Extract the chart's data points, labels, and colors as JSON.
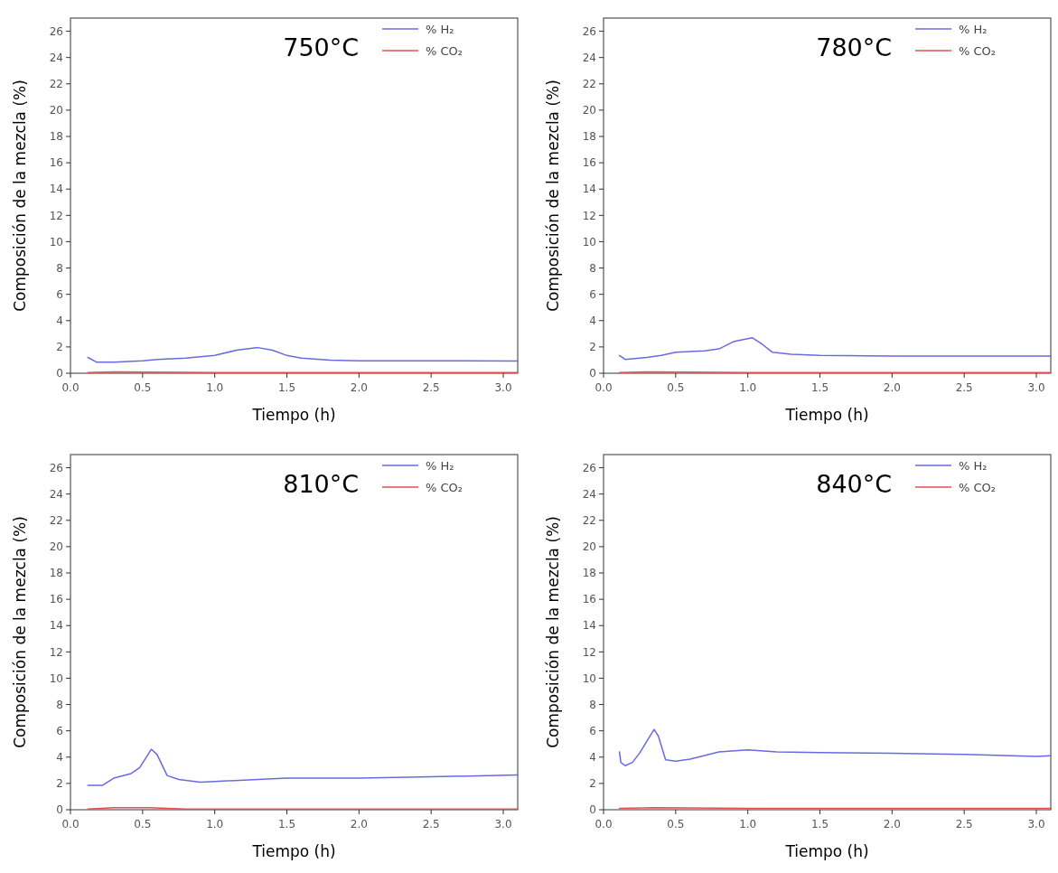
{
  "chart_data": [
    {
      "type": "line",
      "title": "750°C",
      "xlabel": "Tiempo (h)",
      "ylabel": "Composición de la mezcla (%)",
      "xlim": [
        0,
        3.1
      ],
      "ylim": [
        0,
        27
      ],
      "xticks": [
        {
          "value": 0,
          "label": "0.0"
        },
        {
          "value": 0.5,
          "label": "0.5"
        },
        {
          "value": 1,
          "label": "1.0"
        },
        {
          "value": 1.5,
          "label": "1.5"
        },
        {
          "value": 2,
          "label": "2.0"
        },
        {
          "value": 2.5,
          "label": "2.5"
        },
        {
          "value": 3,
          "label": "3.0"
        }
      ],
      "yticks": [
        0,
        2,
        4,
        6,
        8,
        10,
        12,
        14,
        16,
        18,
        20,
        22,
        24,
        26
      ],
      "legend": "top right",
      "series": [
        {
          "name": "% H₂",
          "color": "#6a6ae0",
          "x": [
            0.12,
            0.18,
            0.3,
            0.5,
            0.6,
            0.8,
            1.0,
            1.15,
            1.3,
            1.4,
            1.5,
            1.6,
            1.8,
            2.0,
            2.5,
            3.1
          ],
          "values": [
            1.2,
            0.85,
            0.85,
            0.95,
            1.05,
            1.15,
            1.35,
            1.75,
            1.95,
            1.75,
            1.35,
            1.15,
            1.0,
            0.95,
            0.95,
            0.92
          ]
        },
        {
          "name": "% CO₂",
          "color": "#e05050",
          "x": [
            0.12,
            0.3,
            1.0,
            2.0,
            3.1
          ],
          "values": [
            0.05,
            0.1,
            0.05,
            0.05,
            0.05
          ]
        }
      ]
    },
    {
      "type": "line",
      "title": "780°C",
      "xlabel": "Tiempo (h)",
      "ylabel": "Composición de la mezcla (%)",
      "xlim": [
        0,
        3.1
      ],
      "ylim": [
        0,
        27
      ],
      "xticks": [
        {
          "value": 0,
          "label": "0.0"
        },
        {
          "value": 0.5,
          "label": "0.5"
        },
        {
          "value": 1,
          "label": "1.0"
        },
        {
          "value": 1.5,
          "label": "1.5"
        },
        {
          "value": 2,
          "label": "2.0"
        },
        {
          "value": 2.5,
          "label": "2.5"
        },
        {
          "value": 3,
          "label": "3.0"
        }
      ],
      "yticks": [
        0,
        2,
        4,
        6,
        8,
        10,
        12,
        14,
        16,
        18,
        20,
        22,
        24,
        26
      ],
      "legend": "top right",
      "series": [
        {
          "name": "% H₂",
          "color": "#6a6ae0",
          "x": [
            0.11,
            0.15,
            0.3,
            0.4,
            0.5,
            0.7,
            0.8,
            0.9,
            1.03,
            1.1,
            1.17,
            1.3,
            1.5,
            2.0,
            3.1
          ],
          "values": [
            1.35,
            1.05,
            1.2,
            1.35,
            1.6,
            1.7,
            1.85,
            2.4,
            2.7,
            2.2,
            1.6,
            1.45,
            1.35,
            1.3,
            1.3
          ]
        },
        {
          "name": "% CO₂",
          "color": "#e05050",
          "x": [
            0.11,
            0.3,
            1.0,
            2.0,
            3.1
          ],
          "values": [
            0.05,
            0.1,
            0.05,
            0.05,
            0.05
          ]
        }
      ]
    },
    {
      "type": "line",
      "title": "810°C",
      "xlabel": "Tiempo (h)",
      "ylabel": "Composición de la mezcla (%)",
      "xlim": [
        0,
        3.1
      ],
      "ylim": [
        0,
        27
      ],
      "xticks": [
        {
          "value": 0,
          "label": "0.0"
        },
        {
          "value": 0.5,
          "label": "0.5"
        },
        {
          "value": 1,
          "label": "1.0"
        },
        {
          "value": 1.5,
          "label": "1.5"
        },
        {
          "value": 2,
          "label": "2.0"
        },
        {
          "value": 2.5,
          "label": "2.5"
        },
        {
          "value": 3,
          "label": "3.0"
        }
      ],
      "yticks": [
        0,
        2,
        4,
        6,
        8,
        10,
        12,
        14,
        16,
        18,
        20,
        22,
        24,
        26
      ],
      "legend": "top right",
      "series": [
        {
          "name": "% H₂",
          "color": "#6a6ae0",
          "x": [
            0.12,
            0.22,
            0.3,
            0.42,
            0.48,
            0.56,
            0.6,
            0.67,
            0.75,
            0.9,
            1.0,
            1.5,
            2.0,
            2.5,
            3.1
          ],
          "values": [
            1.85,
            1.85,
            2.4,
            2.75,
            3.2,
            4.6,
            4.2,
            2.6,
            2.3,
            2.1,
            2.15,
            2.4,
            2.4,
            2.5,
            2.65
          ]
        },
        {
          "name": "% CO₂",
          "color": "#e05050",
          "x": [
            0.12,
            0.3,
            0.55,
            0.8,
            1.5,
            3.1
          ],
          "values": [
            0.05,
            0.15,
            0.15,
            0.05,
            0.05,
            0.05
          ]
        }
      ]
    },
    {
      "type": "line",
      "title": "840°C",
      "xlabel": "Tiempo (h)",
      "ylabel": "Composición de la mezcla (%)",
      "xlim": [
        0,
        3.1
      ],
      "ylim": [
        0,
        27
      ],
      "xticks": [
        {
          "value": 0,
          "label": "0.0"
        },
        {
          "value": 0.5,
          "label": "0.5"
        },
        {
          "value": 1,
          "label": "1.0"
        },
        {
          "value": 1.5,
          "label": "1.5"
        },
        {
          "value": 2,
          "label": "2.0"
        },
        {
          "value": 2.5,
          "label": "2.5"
        },
        {
          "value": 3,
          "label": "3.0"
        }
      ],
      "yticks": [
        0,
        2,
        4,
        6,
        8,
        10,
        12,
        14,
        16,
        18,
        20,
        22,
        24,
        26
      ],
      "legend": "top right",
      "series": [
        {
          "name": "% H₂",
          "color": "#6a6ae0",
          "x": [
            0.11,
            0.12,
            0.15,
            0.2,
            0.25,
            0.35,
            0.38,
            0.43,
            0.5,
            0.6,
            0.8,
            1.0,
            1.2,
            1.5,
            2.0,
            2.5,
            3.0,
            3.1
          ],
          "values": [
            4.4,
            3.6,
            3.35,
            3.6,
            4.3,
            6.1,
            5.6,
            3.8,
            3.7,
            3.85,
            4.4,
            4.55,
            4.4,
            4.35,
            4.3,
            4.2,
            4.05,
            4.1
          ]
        },
        {
          "name": "% CO₂",
          "color": "#e05050",
          "x": [
            0.11,
            0.35,
            1.0,
            2.0,
            3.1
          ],
          "values": [
            0.1,
            0.15,
            0.1,
            0.1,
            0.1
          ]
        }
      ]
    }
  ]
}
